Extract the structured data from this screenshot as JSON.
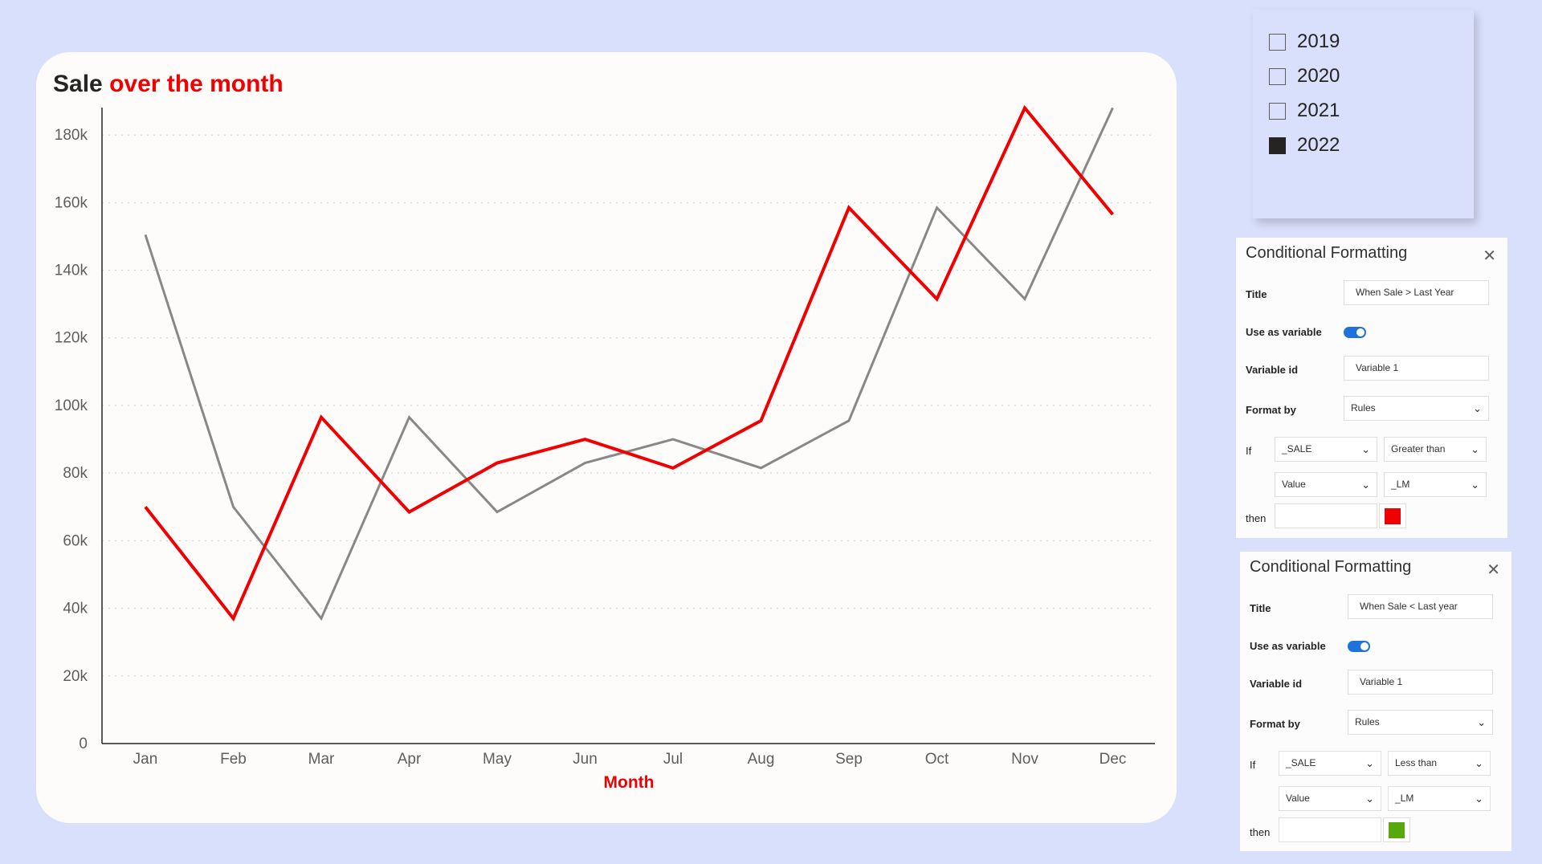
{
  "chart": {
    "title_part1": "Sale",
    "title_part2": "over the month",
    "xlabel": "Month"
  },
  "chart_data": {
    "type": "line",
    "categories": [
      "Jan",
      "Feb",
      "Mar",
      "Apr",
      "May",
      "Jun",
      "Jul",
      "Aug",
      "Sep",
      "Oct",
      "Nov",
      "Dec"
    ],
    "series": [
      {
        "color": "#f00000",
        "values": [
          70000,
          37000,
          96500,
          68500,
          83000,
          90000,
          81500,
          95500,
          158500,
          131500,
          188000,
          156500
        ]
      },
      {
        "color": "#888888",
        "values": [
          150500,
          70000,
          37000,
          96500,
          68500,
          83000,
          90000,
          81500,
          95500,
          158500,
          131500,
          188000
        ]
      }
    ],
    "yticks": [
      "0",
      "20k",
      "40k",
      "60k",
      "80k",
      "100k",
      "120k",
      "140k",
      "160k",
      "180k"
    ],
    "ylim": [
      0,
      190000
    ],
    "grid": true,
    "xlabel": "Month",
    "ylabel": ""
  },
  "slicer": {
    "items": [
      {
        "label": "2019",
        "checked": false
      },
      {
        "label": "2020",
        "checked": false
      },
      {
        "label": "2021",
        "checked": false
      },
      {
        "label": "2022",
        "checked": true
      }
    ]
  },
  "cf_panels": [
    {
      "header": "Conditional Formatting",
      "close": "✕",
      "title_label": "Title",
      "title_value": "When Sale > Last Year",
      "use_var_label": "Use as variable",
      "var_id_label": "Variable id",
      "var_id_value": "Variable 1",
      "format_by_label": "Format by",
      "format_by_value": "Rules",
      "if_label": "If",
      "field": "_SALE",
      "operator": "Greater than",
      "value_type": "Value",
      "compare": "_LM",
      "then_label": "then",
      "color": "#f00000"
    },
    {
      "header": "Conditional Formatting",
      "close": "✕",
      "title_label": "Title",
      "title_value": "When Sale < Last year",
      "use_var_label": "Use as variable",
      "var_id_label": "Variable id",
      "var_id_value": "Variable 1",
      "format_by_label": "Format by",
      "format_by_value": "Rules",
      "if_label": "If",
      "field": "_SALE",
      "operator": "Less than",
      "value_type": "Value",
      "compare": "_LM",
      "then_label": "then",
      "color": "#57a80b"
    }
  ]
}
